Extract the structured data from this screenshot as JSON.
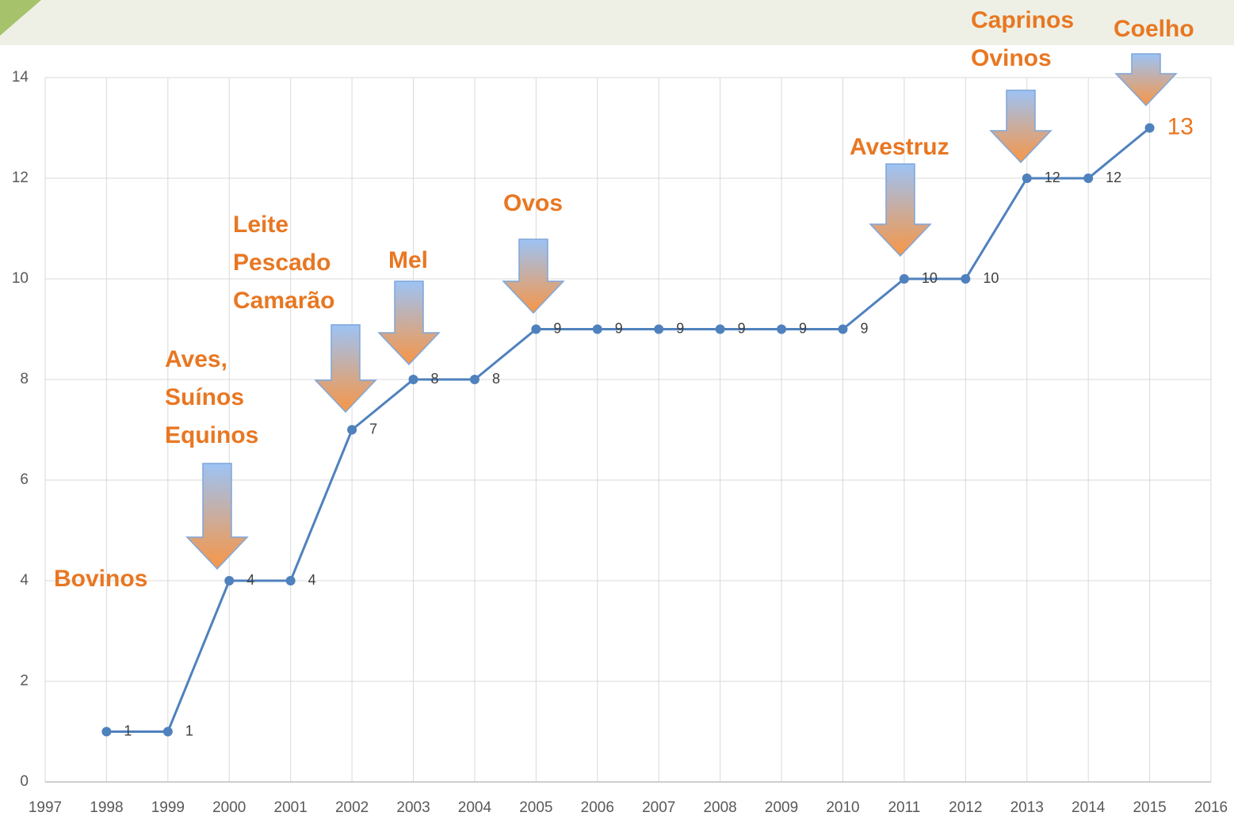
{
  "chart_data": {
    "type": "line",
    "x": [
      1998,
      1999,
      2000,
      2001,
      2002,
      2003,
      2004,
      2005,
      2006,
      2007,
      2008,
      2009,
      2010,
      2011,
      2012,
      2013,
      2014,
      2015
    ],
    "series": [
      {
        "color": "#4f81bd",
        "values": [
          1,
          1,
          4,
          4,
          7,
          8,
          8,
          9,
          9,
          9,
          9,
          9,
          9,
          10,
          10,
          12,
          12,
          13
        ]
      }
    ],
    "xlim": [
      1997,
      2016
    ],
    "xticks": [
      1997,
      1998,
      1999,
      2000,
      2001,
      2002,
      2003,
      2004,
      2005,
      2006,
      2007,
      2008,
      2009,
      2010,
      2011,
      2012,
      2013,
      2014,
      2015,
      2016
    ],
    "ylim": [
      0,
      14
    ],
    "yticks": [
      0,
      2,
      4,
      6,
      8,
      10,
      12,
      14
    ],
    "grid": true,
    "data_labels": true,
    "annotations": [
      {
        "x": 1998,
        "lines": [
          "Bovinos"
        ]
      },
      {
        "x": 2000,
        "lines": [
          "Aves,",
          "Suínos",
          "Equinos"
        ]
      },
      {
        "x": 2002,
        "lines": [
          "Leite",
          "Pescado",
          "Camarão"
        ]
      },
      {
        "x": 2003,
        "lines": [
          "Mel"
        ]
      },
      {
        "x": 2005,
        "lines": [
          "Ovos"
        ]
      },
      {
        "x": 2011,
        "lines": [
          "Avestruz"
        ]
      },
      {
        "x": 2013,
        "lines": [
          "Caprinos",
          "Ovinos"
        ]
      },
      {
        "x": 2015,
        "lines": [
          "Coelho"
        ]
      }
    ]
  }
}
